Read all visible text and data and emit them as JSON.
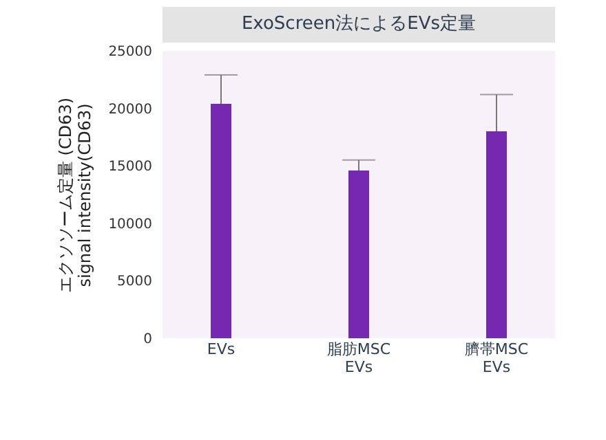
{
  "chart_data": {
    "type": "bar",
    "title": "ExoScreen法によるEVs定量",
    "ylabel": "エクソソーム定量 (CD63)\nsignal intensity(CD63)",
    "categories": [
      "EVs",
      "脂肪MSC\nEVs",
      "臍帯MSC\nEVs"
    ],
    "values": [
      20400,
      14600,
      18000
    ],
    "color": "#7529b0",
    "errors": [
      [
        20400,
        22900
      ],
      [
        14600,
        15500
      ],
      [
        18000,
        21200
      ]
    ],
    "ylim": [
      0,
      25000
    ],
    "yticks": [
      0,
      5000,
      10000,
      15000,
      20000,
      25000
    ],
    "grid": false
  }
}
